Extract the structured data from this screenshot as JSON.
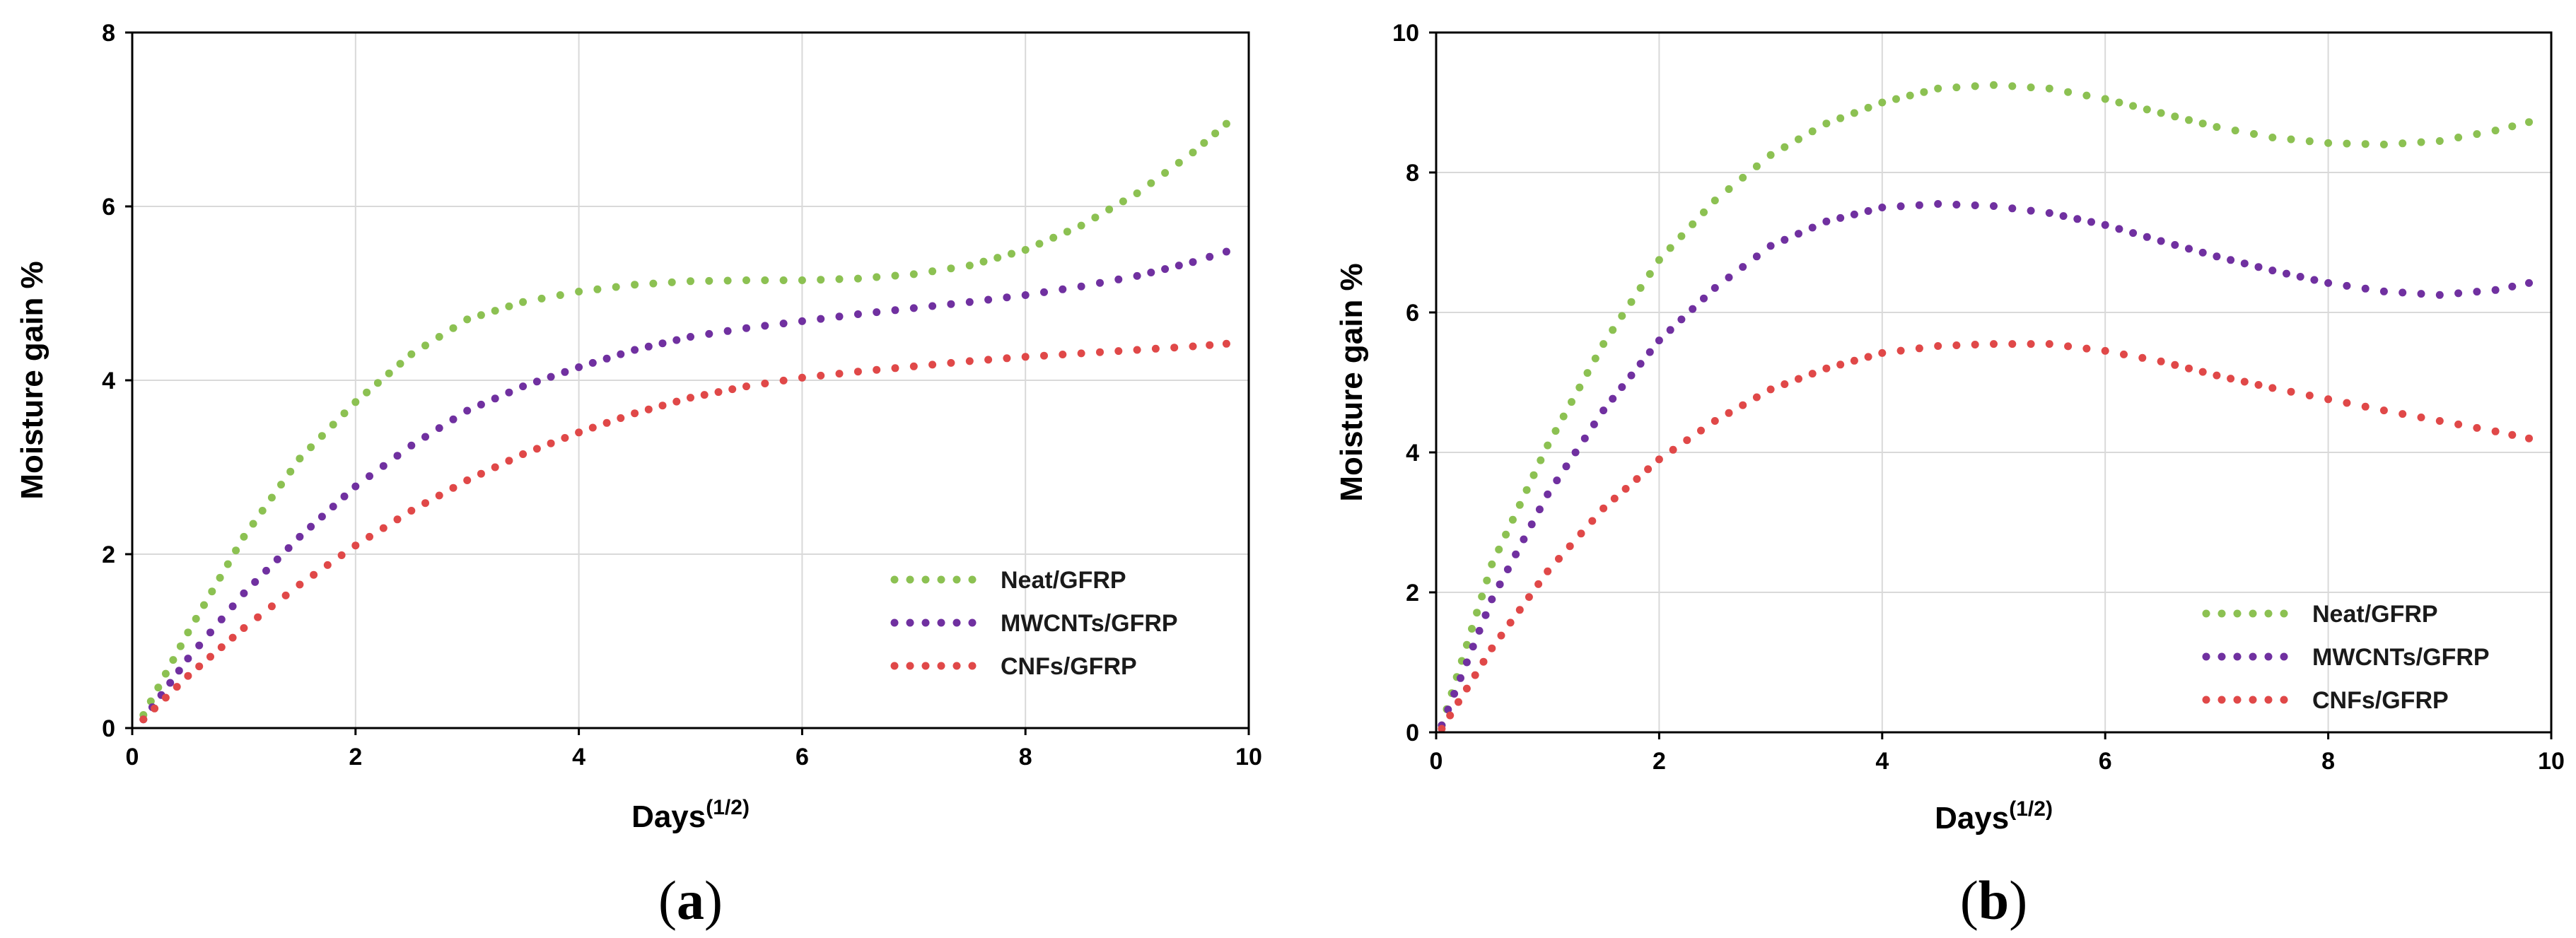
{
  "colors": {
    "neat": "#8cc152",
    "mwcnts": "#7030a0",
    "cnfs": "#e04848",
    "grid": "#d9d9d9",
    "axis": "#000000"
  },
  "chart_data": [
    {
      "type": "line",
      "panel_label": "(a)",
      "panel_letter": "a",
      "xlabel": "Days",
      "xlabel_sup": "(1/2)",
      "ylabel": "Moisture gain %",
      "xlim": [
        0,
        10
      ],
      "ylim": [
        0,
        8
      ],
      "xticks": [
        0,
        2,
        4,
        6,
        8,
        10
      ],
      "yticks": [
        0,
        2,
        4,
        6,
        8
      ],
      "grid": true,
      "legend_position": "bottom-right",
      "series": [
        {
          "name": "Neat/GFRP",
          "color_key": "neat",
          "x": [
            0.1,
            0.5,
            1.0,
            1.5,
            2.0,
            2.5,
            3.0,
            3.5,
            4.0,
            4.5,
            5.0,
            5.5,
            6.0,
            6.5,
            7.0,
            7.5,
            8.0,
            8.5,
            9.0,
            9.5,
            9.8
          ],
          "y": [
            0.15,
            1.1,
            2.2,
            3.1,
            3.75,
            4.3,
            4.7,
            4.9,
            5.02,
            5.1,
            5.14,
            5.15,
            5.15,
            5.17,
            5.22,
            5.32,
            5.5,
            5.78,
            6.15,
            6.62,
            6.95
          ]
        },
        {
          "name": "MWCNTs/GFRP",
          "color_key": "mwcnts",
          "x": [
            0.1,
            0.5,
            1.0,
            1.5,
            2.0,
            2.5,
            3.0,
            3.5,
            4.0,
            4.5,
            5.0,
            5.5,
            6.0,
            6.5,
            7.0,
            7.5,
            8.0,
            8.5,
            9.0,
            9.5,
            9.8
          ],
          "y": [
            0.1,
            0.8,
            1.55,
            2.2,
            2.78,
            3.25,
            3.65,
            3.93,
            4.15,
            4.35,
            4.5,
            4.6,
            4.68,
            4.76,
            4.83,
            4.9,
            4.98,
            5.08,
            5.2,
            5.36,
            5.48
          ]
        },
        {
          "name": "CNFs/GFRP",
          "color_key": "cnfs",
          "x": [
            0.1,
            0.5,
            1.0,
            1.5,
            2.0,
            2.5,
            3.0,
            3.5,
            4.0,
            4.5,
            5.0,
            5.5,
            6.0,
            6.5,
            7.0,
            7.5,
            8.0,
            8.5,
            9.0,
            9.5,
            9.8
          ],
          "y": [
            0.1,
            0.6,
            1.15,
            1.65,
            2.1,
            2.5,
            2.85,
            3.15,
            3.4,
            3.62,
            3.8,
            3.93,
            4.03,
            4.1,
            4.16,
            4.22,
            4.27,
            4.31,
            4.35,
            4.39,
            4.42
          ]
        }
      ]
    },
    {
      "type": "line",
      "panel_label": "(b)",
      "panel_letter": "b",
      "xlabel": "Days",
      "xlabel_sup": "(1/2)",
      "ylabel": "Moisture gain %",
      "xlim": [
        0,
        10
      ],
      "ylim": [
        0,
        10
      ],
      "xticks": [
        0,
        2,
        4,
        6,
        8,
        10
      ],
      "yticks": [
        0,
        2,
        4,
        6,
        8,
        10
      ],
      "grid": true,
      "legend_position": "bottom-right",
      "series": [
        {
          "name": "Neat/GFRP",
          "color_key": "neat",
          "x": [
            0.05,
            0.5,
            1.0,
            1.5,
            2.0,
            2.5,
            3.0,
            3.5,
            4.0,
            4.5,
            5.0,
            5.5,
            6.0,
            6.5,
            7.0,
            7.5,
            8.0,
            8.5,
            9.0,
            9.5,
            9.8
          ],
          "y": [
            0.1,
            2.4,
            4.1,
            5.55,
            6.75,
            7.6,
            8.25,
            8.7,
            9.0,
            9.2,
            9.25,
            9.2,
            9.05,
            8.85,
            8.65,
            8.5,
            8.42,
            8.4,
            8.45,
            8.6,
            8.72
          ]
        },
        {
          "name": "MWCNTs/GFRP",
          "color_key": "mwcnts",
          "x": [
            0.05,
            0.5,
            1.0,
            1.5,
            2.0,
            2.5,
            3.0,
            3.5,
            4.0,
            4.5,
            5.0,
            5.5,
            6.0,
            6.5,
            7.0,
            7.5,
            8.0,
            8.5,
            9.0,
            9.5,
            9.8
          ],
          "y": [
            0.1,
            1.9,
            3.4,
            4.6,
            5.6,
            6.35,
            6.95,
            7.3,
            7.5,
            7.55,
            7.52,
            7.42,
            7.25,
            7.02,
            6.8,
            6.6,
            6.42,
            6.3,
            6.25,
            6.32,
            6.42
          ]
        },
        {
          "name": "CNFs/GFRP",
          "color_key": "cnfs",
          "x": [
            0.05,
            0.5,
            1.0,
            1.5,
            2.0,
            2.5,
            3.0,
            3.5,
            4.0,
            4.5,
            5.0,
            5.5,
            6.0,
            6.5,
            7.0,
            7.5,
            8.0,
            8.5,
            9.0,
            9.5,
            9.8
          ],
          "y": [
            0.05,
            1.2,
            2.3,
            3.2,
            3.9,
            4.45,
            4.9,
            5.2,
            5.42,
            5.52,
            5.55,
            5.55,
            5.45,
            5.3,
            5.1,
            4.92,
            4.76,
            4.6,
            4.45,
            4.3,
            4.2
          ]
        }
      ]
    }
  ]
}
